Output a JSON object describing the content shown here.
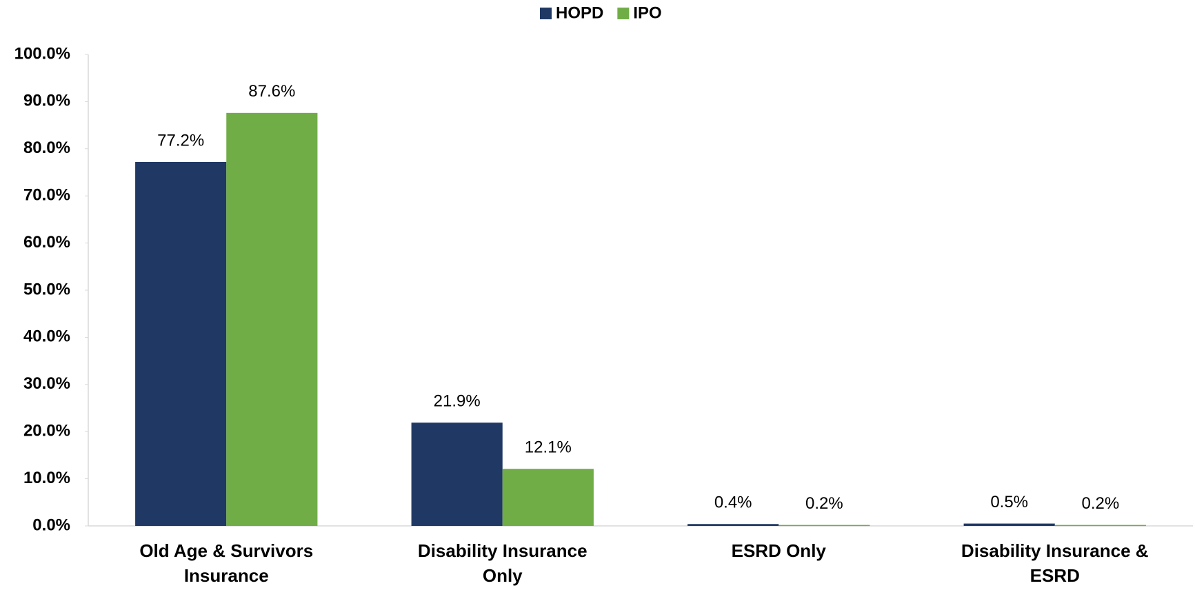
{
  "chart_data": {
    "type": "bar",
    "categories": [
      "Old Age & Survivors Insurance",
      "Disability Insurance Only",
      "ESRD Only",
      "Disability Insurance & ESRD"
    ],
    "series": [
      {
        "name": "HOPD",
        "color": "#203864",
        "values": [
          77.2,
          21.9,
          0.4,
          0.5
        ],
        "value_labels": [
          "77.2%",
          "21.9%",
          "0.4%",
          "0.5%"
        ]
      },
      {
        "name": "IPO",
        "color": "#70ad47",
        "values": [
          87.6,
          12.1,
          0.2,
          0.2
        ],
        "value_labels": [
          "87.6%",
          "12.1%",
          "0.2%",
          "0.2%"
        ]
      }
    ],
    "ylim": [
      0,
      100
    ],
    "yticks": [
      {
        "value": 0,
        "label": "0.0%"
      },
      {
        "value": 10,
        "label": "10.0%"
      },
      {
        "value": 20,
        "label": "20.0%"
      },
      {
        "value": 30,
        "label": "30.0%"
      },
      {
        "value": 40,
        "label": "40.0%"
      },
      {
        "value": 50,
        "label": "50.0%"
      },
      {
        "value": 60,
        "label": "60.0%"
      },
      {
        "value": 70,
        "label": "70.0%"
      },
      {
        "value": 80,
        "label": "80.0%"
      },
      {
        "value": 90,
        "label": "90.0%"
      },
      {
        "value": 100,
        "label": "100.0%"
      }
    ],
    "grid": false,
    "legend": "top"
  }
}
